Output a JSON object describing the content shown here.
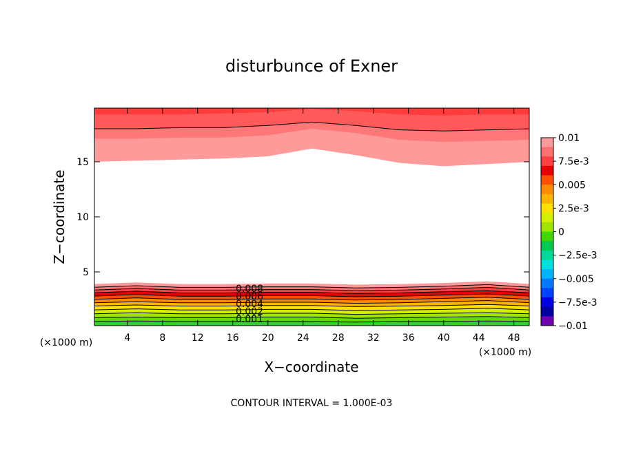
{
  "chart_data": {
    "type": "contour",
    "title": "disturbunce of Exner",
    "xlabel": "X−coordinate",
    "ylabel": "Z−coordinate",
    "unit_label": "(×1000 m)",
    "footer": "CONTOUR INTERVAL = 1.000E-03",
    "xlim": [
      0.25,
      49.75
    ],
    "ylim": [
      0.125,
      19.875
    ],
    "xticks": [
      4,
      8,
      12,
      16,
      20,
      24,
      28,
      32,
      36,
      40,
      44,
      48
    ],
    "yticks": [
      5,
      10,
      15
    ],
    "x": [
      0,
      5,
      10,
      15,
      20,
      25,
      30,
      35,
      40,
      45,
      50
    ],
    "top_bands": [
      {
        "color": "#ff9a9a",
        "values": [
          15.0,
          15.1,
          15.2,
          15.3,
          15.5,
          16.2,
          15.6,
          14.9,
          14.6,
          14.8,
          15.0
        ]
      },
      {
        "color": "#ff7777",
        "values": [
          17.1,
          17.1,
          17.2,
          17.2,
          17.4,
          18.0,
          17.6,
          17.0,
          16.8,
          16.9,
          17.0
        ]
      },
      {
        "color": "#ff5a5a",
        "values": [
          18.0,
          18.0,
          18.1,
          18.1,
          18.3,
          18.6,
          18.3,
          17.9,
          17.8,
          17.9,
          18.0
        ]
      },
      {
        "color": "#ff3c3c",
        "values": [
          19.3,
          19.3,
          19.3,
          19.4,
          19.5,
          19.8,
          19.6,
          19.3,
          19.2,
          19.3,
          19.3
        ]
      }
    ],
    "bottom_bands": [
      {
        "color": "#ff9a9a",
        "values": [
          3.9,
          4.05,
          3.9,
          3.9,
          3.95,
          3.95,
          3.85,
          3.9,
          4.0,
          4.15,
          3.9
        ]
      },
      {
        "color": "#ff7070",
        "values": [
          3.6,
          3.75,
          3.6,
          3.6,
          3.65,
          3.65,
          3.55,
          3.6,
          3.7,
          3.85,
          3.6
        ]
      },
      {
        "color": "#ff4040",
        "values": [
          3.35,
          3.5,
          3.35,
          3.35,
          3.4,
          3.4,
          3.3,
          3.35,
          3.45,
          3.6,
          3.35
        ]
      },
      {
        "color": "#e60000",
        "values": [
          3.1,
          3.25,
          3.1,
          3.1,
          3.15,
          3.15,
          3.05,
          3.1,
          3.2,
          3.3,
          3.1
        ]
      },
      {
        "color": "#ff5000",
        "values": [
          2.8,
          2.95,
          2.8,
          2.8,
          2.85,
          2.85,
          2.75,
          2.8,
          2.9,
          3.0,
          2.8
        ]
      },
      {
        "color": "#ff8c00",
        "values": [
          2.5,
          2.65,
          2.5,
          2.5,
          2.55,
          2.55,
          2.45,
          2.5,
          2.6,
          2.7,
          2.5
        ]
      },
      {
        "color": "#ffb400",
        "values": [
          2.2,
          2.3,
          2.2,
          2.2,
          2.25,
          2.25,
          2.15,
          2.2,
          2.3,
          2.4,
          2.2
        ]
      },
      {
        "color": "#ffe000",
        "values": [
          1.9,
          2.0,
          1.9,
          1.9,
          1.95,
          1.95,
          1.85,
          1.9,
          1.95,
          2.05,
          1.9
        ]
      },
      {
        "color": "#d4f000",
        "values": [
          1.55,
          1.65,
          1.55,
          1.55,
          1.6,
          1.6,
          1.5,
          1.55,
          1.6,
          1.7,
          1.55
        ]
      },
      {
        "color": "#a0e600",
        "values": [
          1.2,
          1.3,
          1.2,
          1.2,
          1.25,
          1.25,
          1.15,
          1.2,
          1.25,
          1.3,
          1.2
        ]
      },
      {
        "color": "#60dc00",
        "values": [
          0.85,
          0.9,
          0.85,
          0.85,
          0.9,
          0.9,
          0.8,
          0.85,
          0.9,
          0.95,
          0.85
        ]
      },
      {
        "color": "#30d030",
        "values": [
          0.5,
          0.55,
          0.5,
          0.5,
          0.5,
          0.5,
          0.45,
          0.5,
          0.5,
          0.55,
          0.5
        ]
      }
    ],
    "contour_labels": [
      "0.008",
      "0.006",
      "0.004",
      "0.002",
      "0.001"
    ],
    "colorbar": {
      "lim": [
        -0.01,
        0.01
      ],
      "colors": [
        "#ff9a9a",
        "#ff7070",
        "#ff4040",
        "#e60000",
        "#ff5000",
        "#ff8c00",
        "#ffb400",
        "#ffe000",
        "#d4f000",
        "#a0e600",
        "#40d800",
        "#00c850",
        "#00d89a",
        "#00e0e0",
        "#00b4ff",
        "#0078ff",
        "#0040ff",
        "#0000e0",
        "#0000a0",
        "#7000b0"
      ],
      "ticks": [
        0.01,
        {
          "value": 0.0075,
          "label": "7.5e-3"
        },
        0.005,
        {
          "value": 0.0025,
          "label": "2.5e-3"
        },
        0,
        {
          "value": -0.0025,
          "label": "−2.5e-3"
        },
        {
          "value": -0.005,
          "label": "−0.005"
        },
        {
          "value": -0.0075,
          "label": "−7.5e-3"
        },
        {
          "value": -0.01,
          "label": "−0.01"
        }
      ]
    }
  }
}
